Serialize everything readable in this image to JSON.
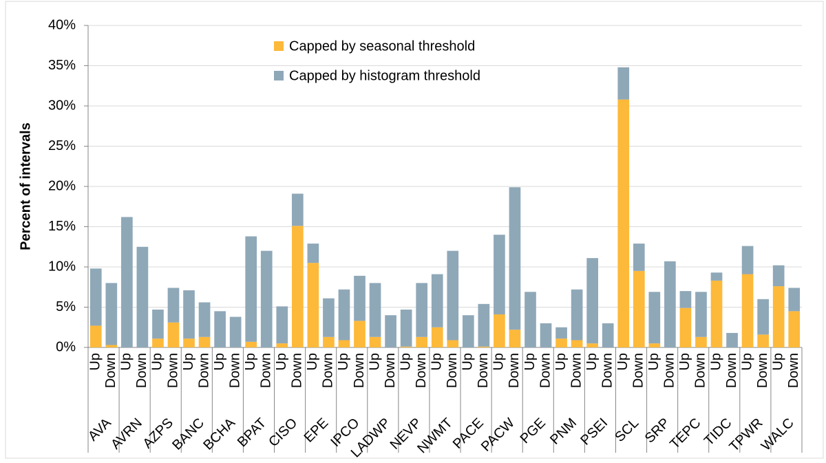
{
  "chart_data": {
    "type": "stacked-bar",
    "y_label": "Percent of intervals",
    "groups": [
      "AVA",
      "AVRN",
      "AZPS",
      "BANC",
      "BCHA",
      "BPAT",
      "CISO",
      "EPE",
      "IPCO",
      "LADWP",
      "NEVP",
      "NWMT",
      "PACE",
      "PACW",
      "PGE",
      "PNM",
      "PSEI",
      "SCL",
      "SRP",
      "TEPC",
      "TIDC",
      "TPWR",
      "WALC"
    ],
    "categories": [
      "Up",
      "Down",
      "Up",
      "Down",
      "Up",
      "Down",
      "Up",
      "Down",
      "Up",
      "Down",
      "Up",
      "Down",
      "Up",
      "Down",
      "Up",
      "Down",
      "Up",
      "Down",
      "Up",
      "Down",
      "Up",
      "Down",
      "Up",
      "Down",
      "Up",
      "Down",
      "Up",
      "Down",
      "Up",
      "Down",
      "Up",
      "Down",
      "Up",
      "Down",
      "Up",
      "Down",
      "Up",
      "Down",
      "Up",
      "Down",
      "Up",
      "Down",
      "Up",
      "Down",
      "Up",
      "Down"
    ],
    "series": [
      {
        "name": "Capped by seasonal threshold",
        "color": "#fdb93a",
        "values": [
          2.7,
          0.3,
          0,
          0,
          1.1,
          3.1,
          1.1,
          1.3,
          0,
          0,
          0.7,
          0,
          0.5,
          15.1,
          10.5,
          1.3,
          0.9,
          3.3,
          1.3,
          0,
          0.1,
          1.3,
          2.5,
          0.9,
          0,
          0.1,
          4.1,
          2.2,
          0,
          0,
          1.1,
          0.9,
          0.5,
          0,
          30.8,
          9.5,
          0.5,
          0,
          4.9,
          1.3,
          8.3,
          0,
          9.1,
          1.6,
          7.6,
          4.5
        ]
      },
      {
        "name": "Capped by histogram threshold",
        "color": "#8fa8b8",
        "values": [
          7.1,
          7.7,
          16.2,
          12.5,
          3.6,
          4.3,
          6.0,
          4.3,
          4.5,
          3.8,
          13.1,
          12.0,
          4.6,
          4.0,
          2.4,
          4.8,
          6.3,
          5.6,
          6.7,
          4.0,
          4.6,
          6.7,
          6.6,
          11.1,
          4.0,
          5.3,
          9.9,
          17.7,
          6.9,
          3.0,
          1.4,
          6.3,
          10.6,
          3.0,
          4.0,
          3.4,
          6.4,
          10.7,
          2.1,
          5.6,
          1.0,
          1.8,
          3.5,
          4.4,
          2.6,
          2.9
        ]
      }
    ],
    "ylim": [
      0,
      40
    ],
    "yticks": [
      {
        "value": 0,
        "label": "0%"
      },
      {
        "value": 5,
        "label": "5%"
      },
      {
        "value": 10,
        "label": "10%"
      },
      {
        "value": 15,
        "label": "15%"
      },
      {
        "value": 20,
        "label": "20%"
      },
      {
        "value": 25,
        "label": "25%"
      },
      {
        "value": 30,
        "label": "30%"
      },
      {
        "value": 35,
        "label": "35%"
      },
      {
        "value": 40,
        "label": "40%"
      }
    ],
    "grid": true,
    "legend": "top"
  }
}
